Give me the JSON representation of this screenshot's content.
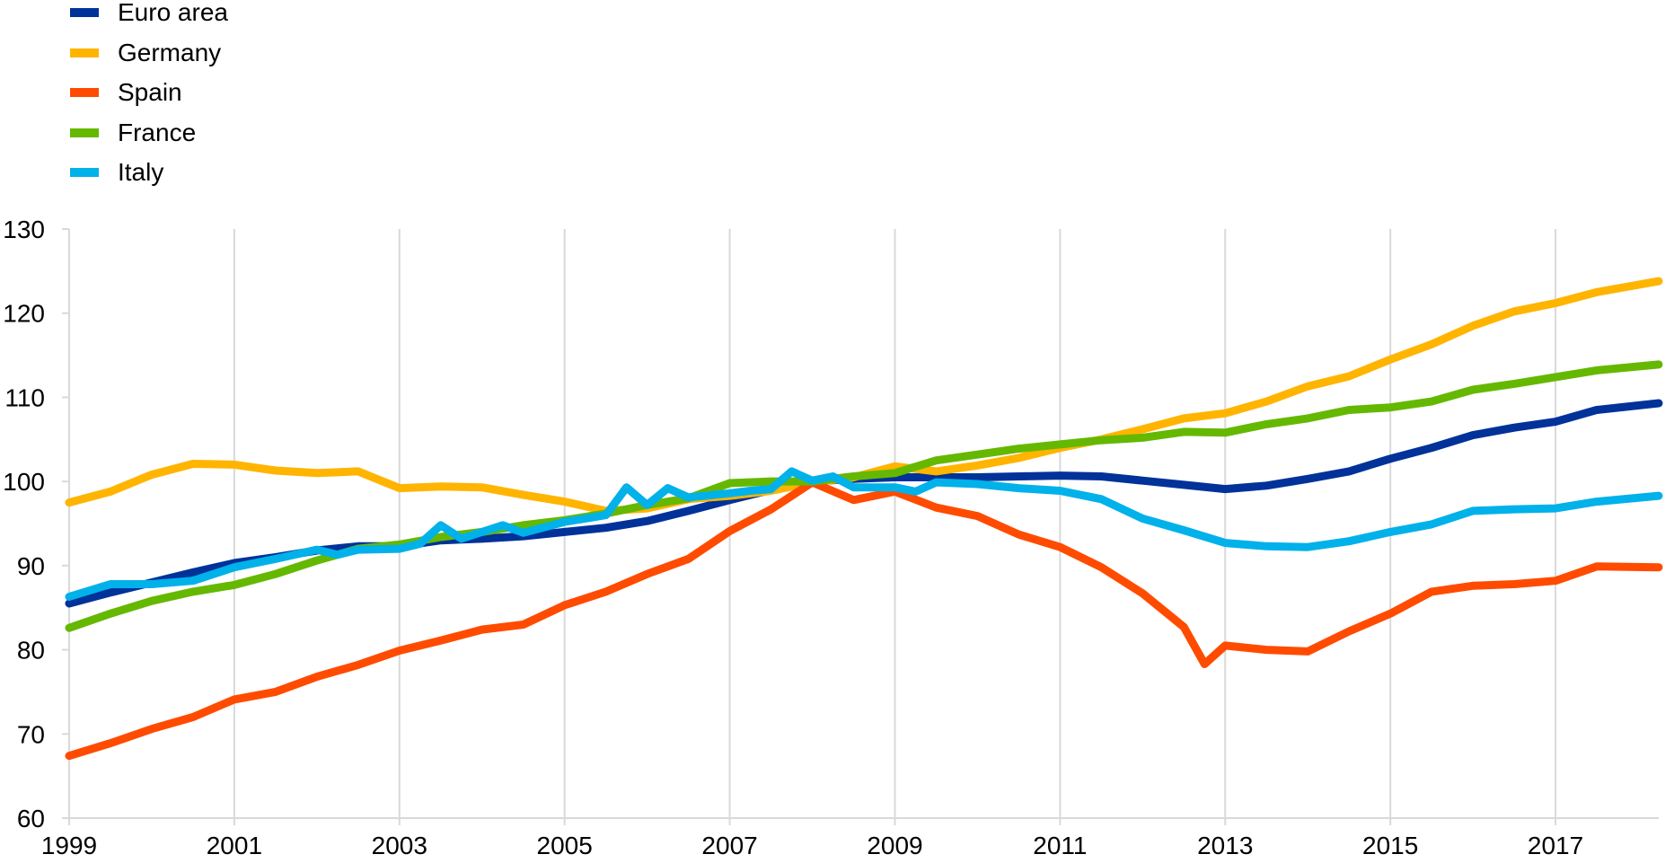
{
  "chart_data": {
    "type": "line",
    "title": "",
    "xlabel": "",
    "ylabel": "",
    "ylim": [
      60,
      130
    ],
    "yticks": [
      60,
      70,
      80,
      90,
      100,
      110,
      120,
      130
    ],
    "xticks": [
      "1999",
      "2001",
      "2003",
      "2005",
      "2007",
      "2009",
      "2011",
      "2013",
      "2015",
      "2017"
    ],
    "xrange": [
      "1999-Q1",
      "2018-Q2"
    ],
    "grid": "vertical lines at every second year",
    "legend_position": "top-left",
    "series": [
      {
        "name": "Euro area",
        "color": "#003299",
        "points": [
          [
            "1999-Q1",
            85.5
          ],
          [
            "1999-Q3",
            86.8
          ],
          [
            "2000-Q1",
            88.0
          ],
          [
            "2000-Q3",
            89.2
          ],
          [
            "2001-Q1",
            90.3
          ],
          [
            "2001-Q3",
            91.0
          ],
          [
            "2002-Q1",
            91.8
          ],
          [
            "2002-Q3",
            92.3
          ],
          [
            "2003-Q1",
            92.3
          ],
          [
            "2003-Q3",
            93.0
          ],
          [
            "2004-Q1",
            93.2
          ],
          [
            "2004-Q3",
            93.5
          ],
          [
            "2005-Q1",
            94.0
          ],
          [
            "2005-Q3",
            94.5
          ],
          [
            "2006-Q1",
            95.3
          ],
          [
            "2006-Q3",
            96.5
          ],
          [
            "2007-Q1",
            97.8
          ],
          [
            "2007-Q3",
            99.0
          ],
          [
            "2008-Q1",
            100.0
          ],
          [
            "2008-Q3",
            100.3
          ],
          [
            "2009-Q1",
            100.5
          ],
          [
            "2009-Q3",
            100.5
          ],
          [
            "2010-Q1",
            100.5
          ],
          [
            "2010-Q3",
            100.6
          ],
          [
            "2011-Q1",
            100.7
          ],
          [
            "2011-Q3",
            100.6
          ],
          [
            "2012-Q1",
            100.1
          ],
          [
            "2012-Q3",
            99.6
          ],
          [
            "2013-Q1",
            99.1
          ],
          [
            "2013-Q3",
            99.5
          ],
          [
            "2014-Q1",
            100.3
          ],
          [
            "2014-Q3",
            101.2
          ],
          [
            "2015-Q1",
            102.7
          ],
          [
            "2015-Q3",
            104.0
          ],
          [
            "2016-Q1",
            105.5
          ],
          [
            "2016-Q3",
            106.4
          ],
          [
            "2017-Q1",
            107.1
          ],
          [
            "2017-Q3",
            108.5
          ],
          [
            "2018-Q2",
            109.3
          ]
        ]
      },
      {
        "name": "Germany",
        "color": "#ffb400",
        "points": [
          [
            "1999-Q1",
            97.5
          ],
          [
            "1999-Q3",
            98.8
          ],
          [
            "2000-Q1",
            100.8
          ],
          [
            "2000-Q3",
            102.1
          ],
          [
            "2001-Q1",
            102.0
          ],
          [
            "2001-Q3",
            101.3
          ],
          [
            "2002-Q1",
            101.0
          ],
          [
            "2002-Q3",
            101.2
          ],
          [
            "2003-Q1",
            99.2
          ],
          [
            "2003-Q3",
            99.4
          ],
          [
            "2004-Q1",
            99.3
          ],
          [
            "2004-Q3",
            98.4
          ],
          [
            "2005-Q1",
            97.6
          ],
          [
            "2005-Q3",
            96.5
          ],
          [
            "2006-Q1",
            96.8
          ],
          [
            "2006-Q3",
            97.9
          ],
          [
            "2007-Q1",
            98.3
          ],
          [
            "2007-Q3",
            98.9
          ],
          [
            "2008-Q1",
            99.9
          ],
          [
            "2008-Q3",
            100.5
          ],
          [
            "2009-Q1",
            101.8
          ],
          [
            "2009-Q3",
            101.2
          ],
          [
            "2010-Q1",
            101.9
          ],
          [
            "2010-Q3",
            102.8
          ],
          [
            "2011-Q1",
            104.0
          ],
          [
            "2011-Q3",
            105.0
          ],
          [
            "2012-Q1",
            106.2
          ],
          [
            "2012-Q3",
            107.5
          ],
          [
            "2013-Q1",
            108.1
          ],
          [
            "2013-Q3",
            109.5
          ],
          [
            "2014-Q1",
            111.3
          ],
          [
            "2014-Q3",
            112.5
          ],
          [
            "2015-Q1",
            114.5
          ],
          [
            "2015-Q3",
            116.3
          ],
          [
            "2016-Q1",
            118.5
          ],
          [
            "2016-Q3",
            120.2
          ],
          [
            "2017-Q1",
            121.2
          ],
          [
            "2017-Q3",
            122.5
          ],
          [
            "2018-Q2",
            123.8
          ]
        ]
      },
      {
        "name": "Spain",
        "color": "#ff4b00",
        "points": [
          [
            "1999-Q1",
            67.4
          ],
          [
            "1999-Q3",
            68.9
          ],
          [
            "2000-Q1",
            70.6
          ],
          [
            "2000-Q3",
            72.0
          ],
          [
            "2001-Q1",
            74.1
          ],
          [
            "2001-Q3",
            75.0
          ],
          [
            "2002-Q1",
            76.8
          ],
          [
            "2002-Q3",
            78.2
          ],
          [
            "2003-Q1",
            79.9
          ],
          [
            "2003-Q3",
            81.1
          ],
          [
            "2004-Q1",
            82.4
          ],
          [
            "2004-Q3",
            83.0
          ],
          [
            "2005-Q1",
            85.3
          ],
          [
            "2005-Q3",
            86.9
          ],
          [
            "2006-Q1",
            89.0
          ],
          [
            "2006-Q3",
            90.8
          ],
          [
            "2007-Q1",
            94.1
          ],
          [
            "2007-Q3",
            96.7
          ],
          [
            "2008-Q1",
            99.9
          ],
          [
            "2008-Q3",
            97.8
          ],
          [
            "2009-Q1",
            98.8
          ],
          [
            "2009-Q3",
            96.9
          ],
          [
            "2010-Q1",
            95.9
          ],
          [
            "2010-Q3",
            93.7
          ],
          [
            "2011-Q1",
            92.2
          ],
          [
            "2011-Q3",
            89.8
          ],
          [
            "2012-Q1",
            86.7
          ],
          [
            "2012-Q3",
            82.7
          ],
          [
            "2012-Q4",
            78.3
          ],
          [
            "2013-Q1",
            80.5
          ],
          [
            "2013-Q3",
            80.0
          ],
          [
            "2014-Q1",
            79.8
          ],
          [
            "2014-Q3",
            82.2
          ],
          [
            "2015-Q1",
            84.3
          ],
          [
            "2015-Q3",
            86.9
          ],
          [
            "2016-Q1",
            87.6
          ],
          [
            "2016-Q3",
            87.8
          ],
          [
            "2017-Q1",
            88.2
          ],
          [
            "2017-Q3",
            89.9
          ],
          [
            "2018-Q2",
            89.8
          ]
        ]
      },
      {
        "name": "France",
        "color": "#65b800",
        "points": [
          [
            "1999-Q1",
            82.6
          ],
          [
            "1999-Q3",
            84.3
          ],
          [
            "2000-Q1",
            85.8
          ],
          [
            "2000-Q3",
            86.9
          ],
          [
            "2001-Q1",
            87.7
          ],
          [
            "2001-Q3",
            89.0
          ],
          [
            "2002-Q1",
            90.6
          ],
          [
            "2002-Q3",
            92.0
          ],
          [
            "2003-Q1",
            92.5
          ],
          [
            "2003-Q3",
            93.4
          ],
          [
            "2004-Q1",
            94.0
          ],
          [
            "2004-Q3",
            94.8
          ],
          [
            "2005-Q1",
            95.4
          ],
          [
            "2005-Q3",
            96.2
          ],
          [
            "2006-Q1",
            97.2
          ],
          [
            "2006-Q3",
            98.0
          ],
          [
            "2007-Q1",
            99.8
          ],
          [
            "2007-Q3",
            100.0
          ],
          [
            "2008-Q1",
            100.0
          ],
          [
            "2008-Q3",
            100.6
          ],
          [
            "2009-Q1",
            101.0
          ],
          [
            "2009-Q3",
            102.5
          ],
          [
            "2010-Q1",
            103.2
          ],
          [
            "2010-Q3",
            103.9
          ],
          [
            "2011-Q1",
            104.4
          ],
          [
            "2011-Q3",
            104.9
          ],
          [
            "2012-Q1",
            105.2
          ],
          [
            "2012-Q3",
            105.9
          ],
          [
            "2013-Q1",
            105.8
          ],
          [
            "2013-Q3",
            106.8
          ],
          [
            "2014-Q1",
            107.5
          ],
          [
            "2014-Q3",
            108.5
          ],
          [
            "2015-Q1",
            108.8
          ],
          [
            "2015-Q3",
            109.5
          ],
          [
            "2016-Q1",
            110.9
          ],
          [
            "2016-Q3",
            111.6
          ],
          [
            "2017-Q1",
            112.4
          ],
          [
            "2017-Q3",
            113.2
          ],
          [
            "2018-Q2",
            113.9
          ]
        ]
      },
      {
        "name": "Italy",
        "color": "#00b1ea",
        "points": [
          [
            "1999-Q1",
            86.3
          ],
          [
            "1999-Q3",
            87.8
          ],
          [
            "2000-Q1",
            87.8
          ],
          [
            "2000-Q3",
            88.2
          ],
          [
            "2001-Q1",
            89.8
          ],
          [
            "2001-Q3",
            90.8
          ],
          [
            "2002-Q1",
            91.9
          ],
          [
            "2002-Q2",
            91.3
          ],
          [
            "2002-Q3",
            91.9
          ],
          [
            "2003-Q1",
            92.0
          ],
          [
            "2003-Q2",
            92.6
          ],
          [
            "2003-Q3",
            94.8
          ],
          [
            "2003-Q4",
            93.2
          ],
          [
            "2004-Q1",
            94.0
          ],
          [
            "2004-Q2",
            94.8
          ],
          [
            "2004-Q3",
            93.9
          ],
          [
            "2005-Q1",
            95.2
          ],
          [
            "2005-Q2",
            95.6
          ],
          [
            "2005-Q3",
            96.0
          ],
          [
            "2005-Q4",
            99.3
          ],
          [
            "2006-Q1",
            97.2
          ],
          [
            "2006-Q2",
            99.2
          ],
          [
            "2006-Q3",
            98.1
          ],
          [
            "2007-Q1",
            98.6
          ],
          [
            "2007-Q2",
            98.9
          ],
          [
            "2007-Q3",
            99.1
          ],
          [
            "2007-Q4",
            101.2
          ],
          [
            "2008-Q1",
            100.1
          ],
          [
            "2008-Q2",
            100.6
          ],
          [
            "2008-Q3",
            99.3
          ],
          [
            "2009-Q1",
            99.3
          ],
          [
            "2009-Q2",
            98.8
          ],
          [
            "2009-Q3",
            99.9
          ],
          [
            "2010-Q1",
            99.7
          ],
          [
            "2010-Q3",
            99.2
          ],
          [
            "2011-Q1",
            98.9
          ],
          [
            "2011-Q3",
            97.9
          ],
          [
            "2012-Q1",
            95.6
          ],
          [
            "2012-Q3",
            94.2
          ],
          [
            "2013-Q1",
            92.7
          ],
          [
            "2013-Q3",
            92.3
          ],
          [
            "2014-Q1",
            92.2
          ],
          [
            "2014-Q3",
            92.9
          ],
          [
            "2015-Q1",
            94.0
          ],
          [
            "2015-Q3",
            94.9
          ],
          [
            "2016-Q1",
            96.5
          ],
          [
            "2016-Q3",
            96.7
          ],
          [
            "2017-Q1",
            96.8
          ],
          [
            "2017-Q3",
            97.6
          ],
          [
            "2018-Q2",
            98.3
          ]
        ]
      }
    ]
  }
}
